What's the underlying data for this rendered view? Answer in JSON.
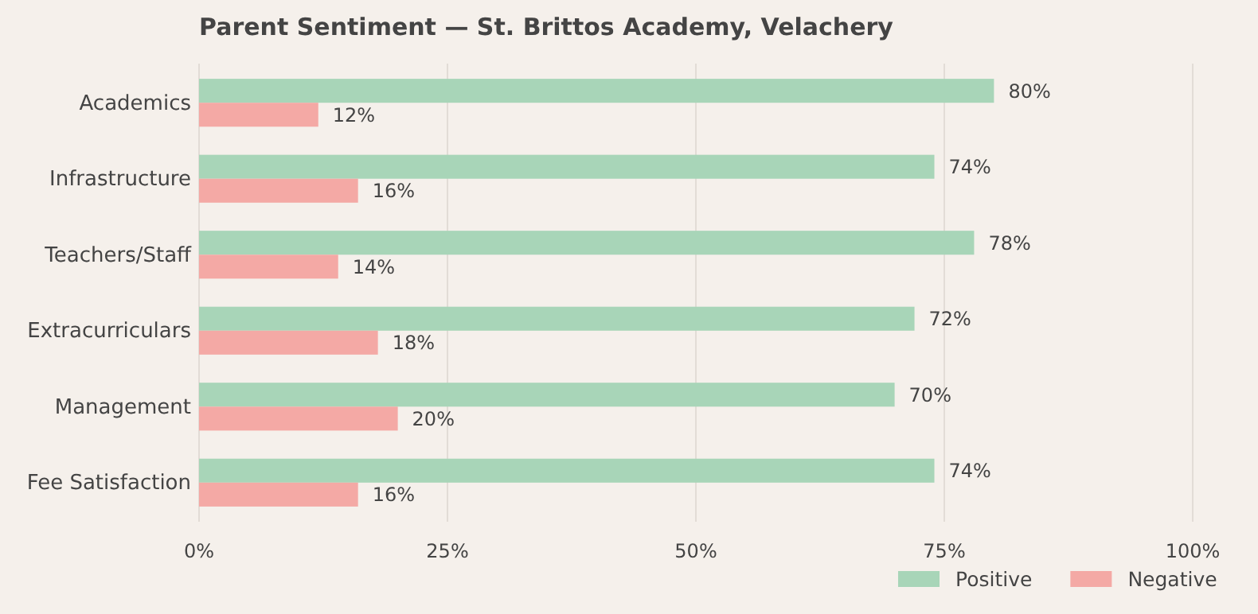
{
  "chart_data": {
    "type": "bar",
    "orientation": "horizontal",
    "title": "Parent Sentiment — St. Brittos Academy, Velachery",
    "categories": [
      "Academics",
      "Infrastructure",
      "Teachers/Staff",
      "Extracurriculars",
      "Management",
      "Fee Satisfaction"
    ],
    "series": [
      {
        "name": "Positive",
        "color": "#a8d5b8",
        "values": [
          80,
          74,
          78,
          72,
          70,
          74
        ],
        "value_labels": [
          "80%",
          "74%",
          "78%",
          "72%",
          "70%",
          "74%"
        ]
      },
      {
        "name": "Negative",
        "color": "#f4a9a5",
        "values": [
          12,
          16,
          14,
          18,
          20,
          16
        ],
        "value_labels": [
          "12%",
          "16%",
          "14%",
          "18%",
          "20%",
          "16%"
        ]
      }
    ],
    "xlim": [
      0,
      100
    ],
    "xticks": [
      {
        "value": 0,
        "label": "0%"
      },
      {
        "value": 25,
        "label": "25%"
      },
      {
        "value": 50,
        "label": "50%"
      },
      {
        "value": 75,
        "label": "75%"
      },
      {
        "value": 100,
        "label": "100%"
      }
    ],
    "grid": "x",
    "legend": "bottom right"
  }
}
